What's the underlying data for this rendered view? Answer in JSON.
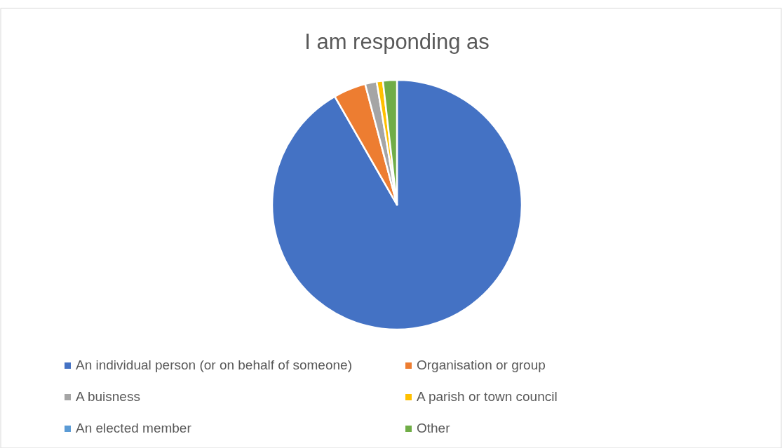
{
  "chart_data": {
    "type": "pie",
    "title": "I am responding as",
    "categories": [
      "An individual person (or on behalf of someone)",
      "Organisation or group",
      "A buisness",
      "A parish or town council",
      "An elected member",
      "Other"
    ],
    "values": [
      91.7,
      4.2,
      1.5,
      0.8,
      null,
      1.8
    ],
    "colors": [
      "#4472c4",
      "#ed7d31",
      "#a5a5a5",
      "#ffc000",
      "#5b9bd5",
      "#70ad47"
    ],
    "legend": "bottom"
  }
}
